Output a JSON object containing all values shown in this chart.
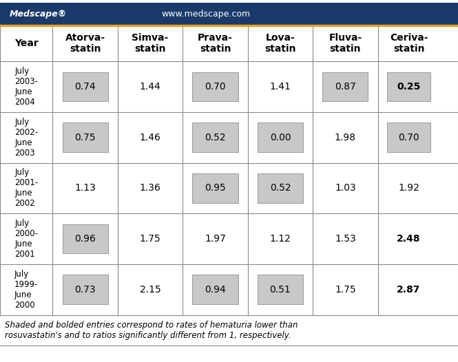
{
  "header_bg": "#1a3a6b",
  "header_line_color": "#e8a020",
  "col_headers": [
    "Atorva-\nstatin",
    "Simva-\nstatin",
    "Prava-\nstatin",
    "Lova-\nstatin",
    "Fluva-\nstatin",
    "Ceriva-\nstatin"
  ],
  "row_labels": [
    "July\n2003-\nJune\n2004",
    "July\n2002-\nJune\n2003",
    "July\n2001-\nJune\n2002",
    "July\n2000-\nJune\n2001",
    "July\n1999-\nJune\n2000"
  ],
  "values": [
    [
      "0.74",
      "1.44",
      "0.70",
      "1.41",
      "0.87",
      "0.25"
    ],
    [
      "0.75",
      "1.46",
      "0.52",
      "0.00",
      "1.98",
      "0.70"
    ],
    [
      "1.13",
      "1.36",
      "0.95",
      "0.52",
      "1.03",
      "1.92"
    ],
    [
      "0.96",
      "1.75",
      "1.97",
      "1.12",
      "1.53",
      "2.48"
    ],
    [
      "0.73",
      "2.15",
      "0.94",
      "0.51",
      "1.75",
      "2.87"
    ]
  ],
  "shaded": [
    [
      true,
      false,
      true,
      false,
      true,
      true
    ],
    [
      true,
      false,
      true,
      true,
      false,
      true
    ],
    [
      false,
      false,
      true,
      true,
      false,
      false
    ],
    [
      true,
      false,
      false,
      false,
      false,
      false
    ],
    [
      true,
      false,
      true,
      true,
      false,
      false
    ]
  ],
  "bold": [
    [
      false,
      false,
      false,
      false,
      false,
      true
    ],
    [
      false,
      false,
      false,
      false,
      false,
      false
    ],
    [
      false,
      false,
      false,
      false,
      false,
      false
    ],
    [
      false,
      false,
      false,
      false,
      false,
      true
    ],
    [
      false,
      false,
      false,
      false,
      false,
      true
    ]
  ],
  "footnote": "Shaded and bolded entries correspond to rates of hematuria lower than\nrosuvastatin's and to ratios significantly different from 1, respectively.",
  "shade_color": "#c8c8c8",
  "medscape_text": "Medscape®",
  "website_text": "www.medscape.com",
  "year_col_header": "Year"
}
